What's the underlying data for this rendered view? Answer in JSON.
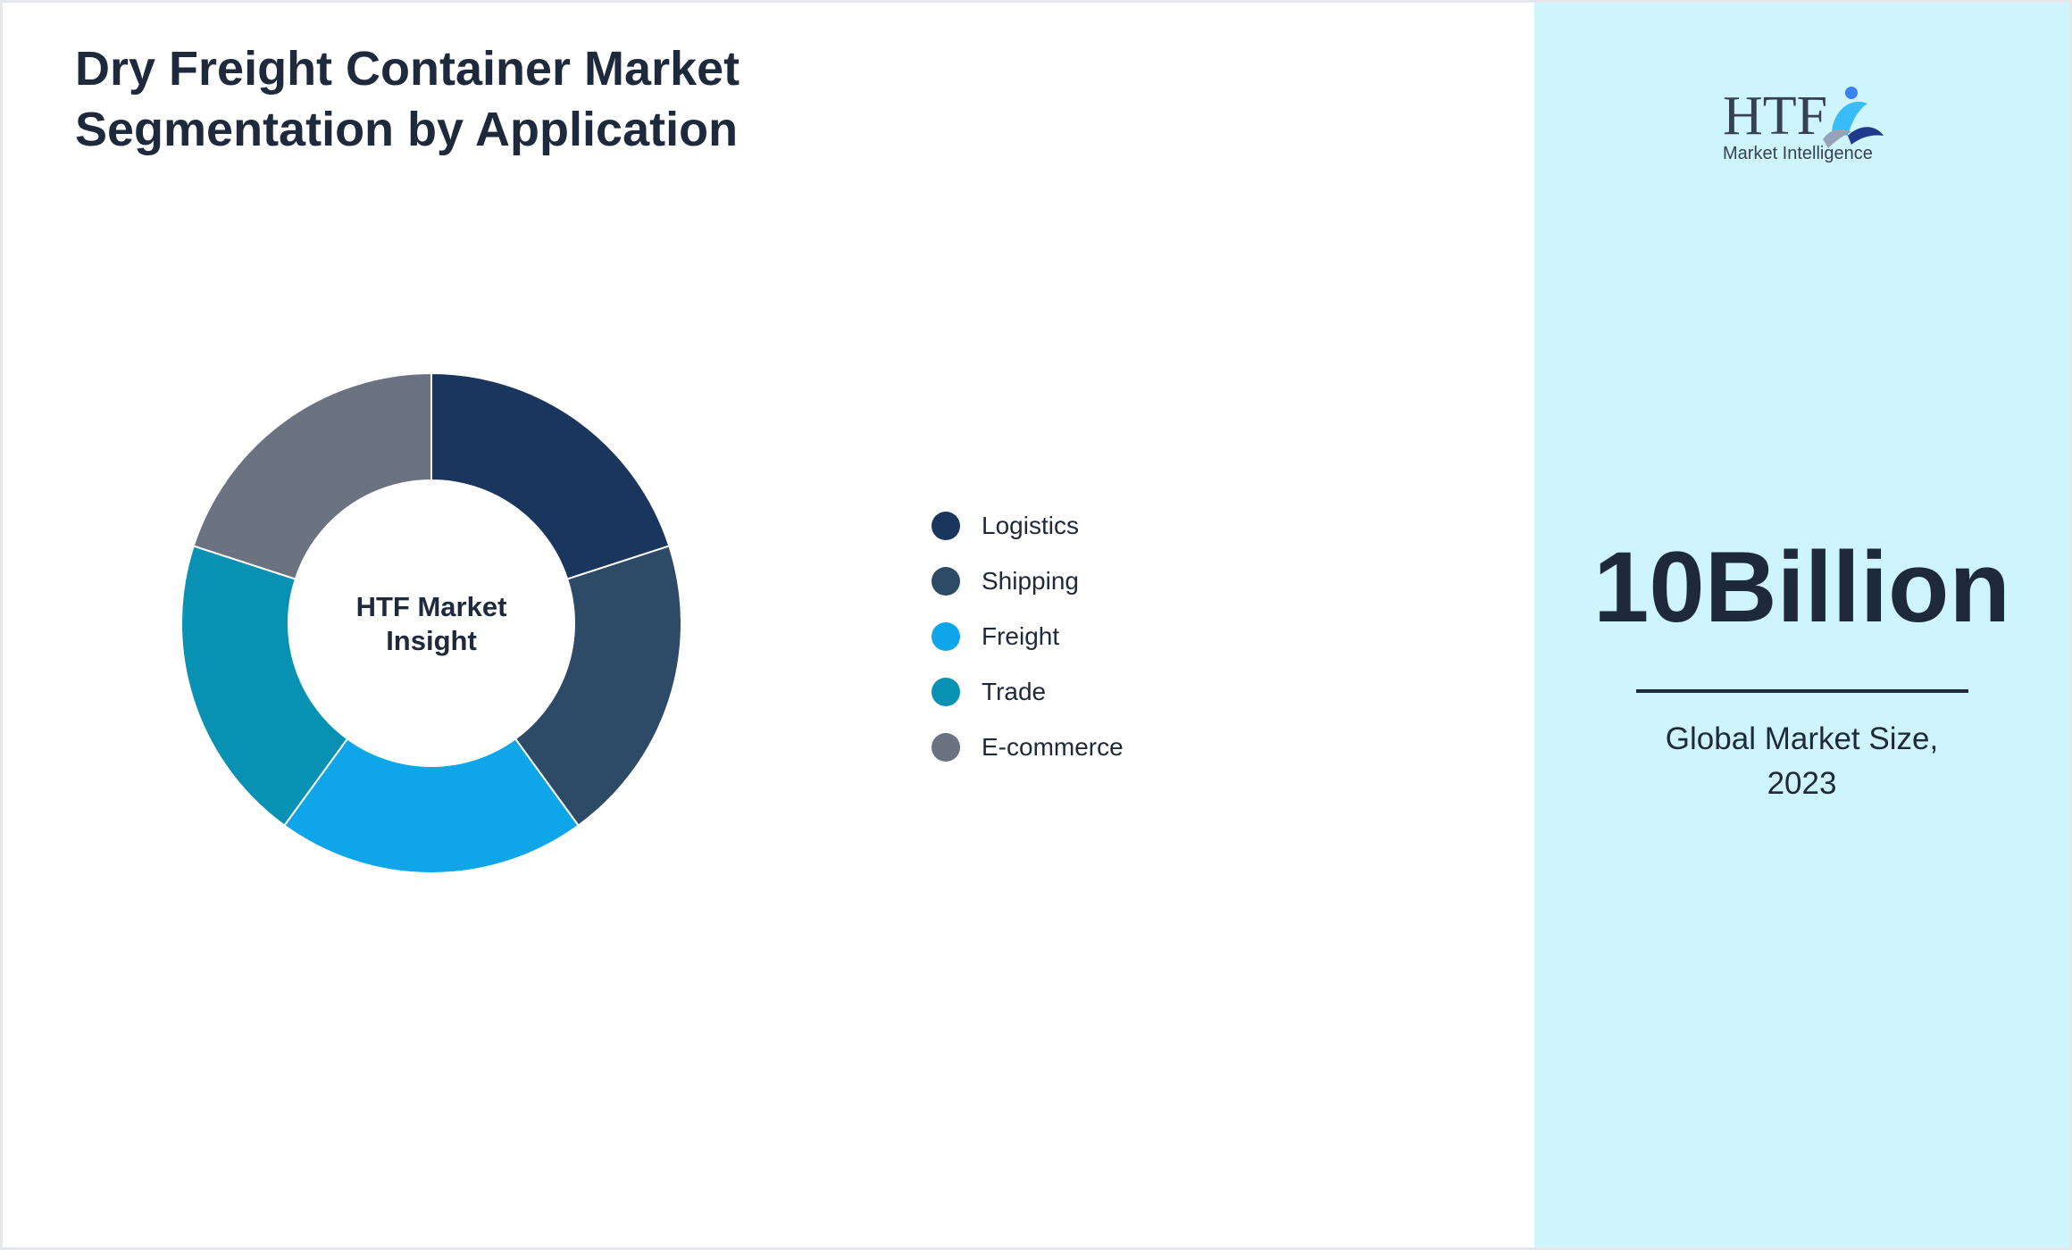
{
  "title_lines": [
    "Dry Freight Container Market",
    "Segmentation by Application"
  ],
  "chart_data": {
    "type": "pie",
    "variant": "donut",
    "title": "",
    "center_label_lines": [
      "HTF Market",
      "Insight"
    ],
    "categories": [
      "Logistics",
      "Shipping",
      "Freight",
      "Trade",
      "E-commerce"
    ],
    "values": [
      20,
      20,
      20,
      20,
      20
    ],
    "colors": [
      "#1b365d",
      "#2d4a66",
      "#0ea5e9",
      "#0891b2",
      "#6b7280"
    ],
    "legend_position": "right"
  },
  "logo": {
    "text": "HTF",
    "subtitle": "Market Intelligence"
  },
  "market_size": {
    "value": "10Billion",
    "caption_lines": [
      "Global Market Size,",
      "2023"
    ]
  }
}
